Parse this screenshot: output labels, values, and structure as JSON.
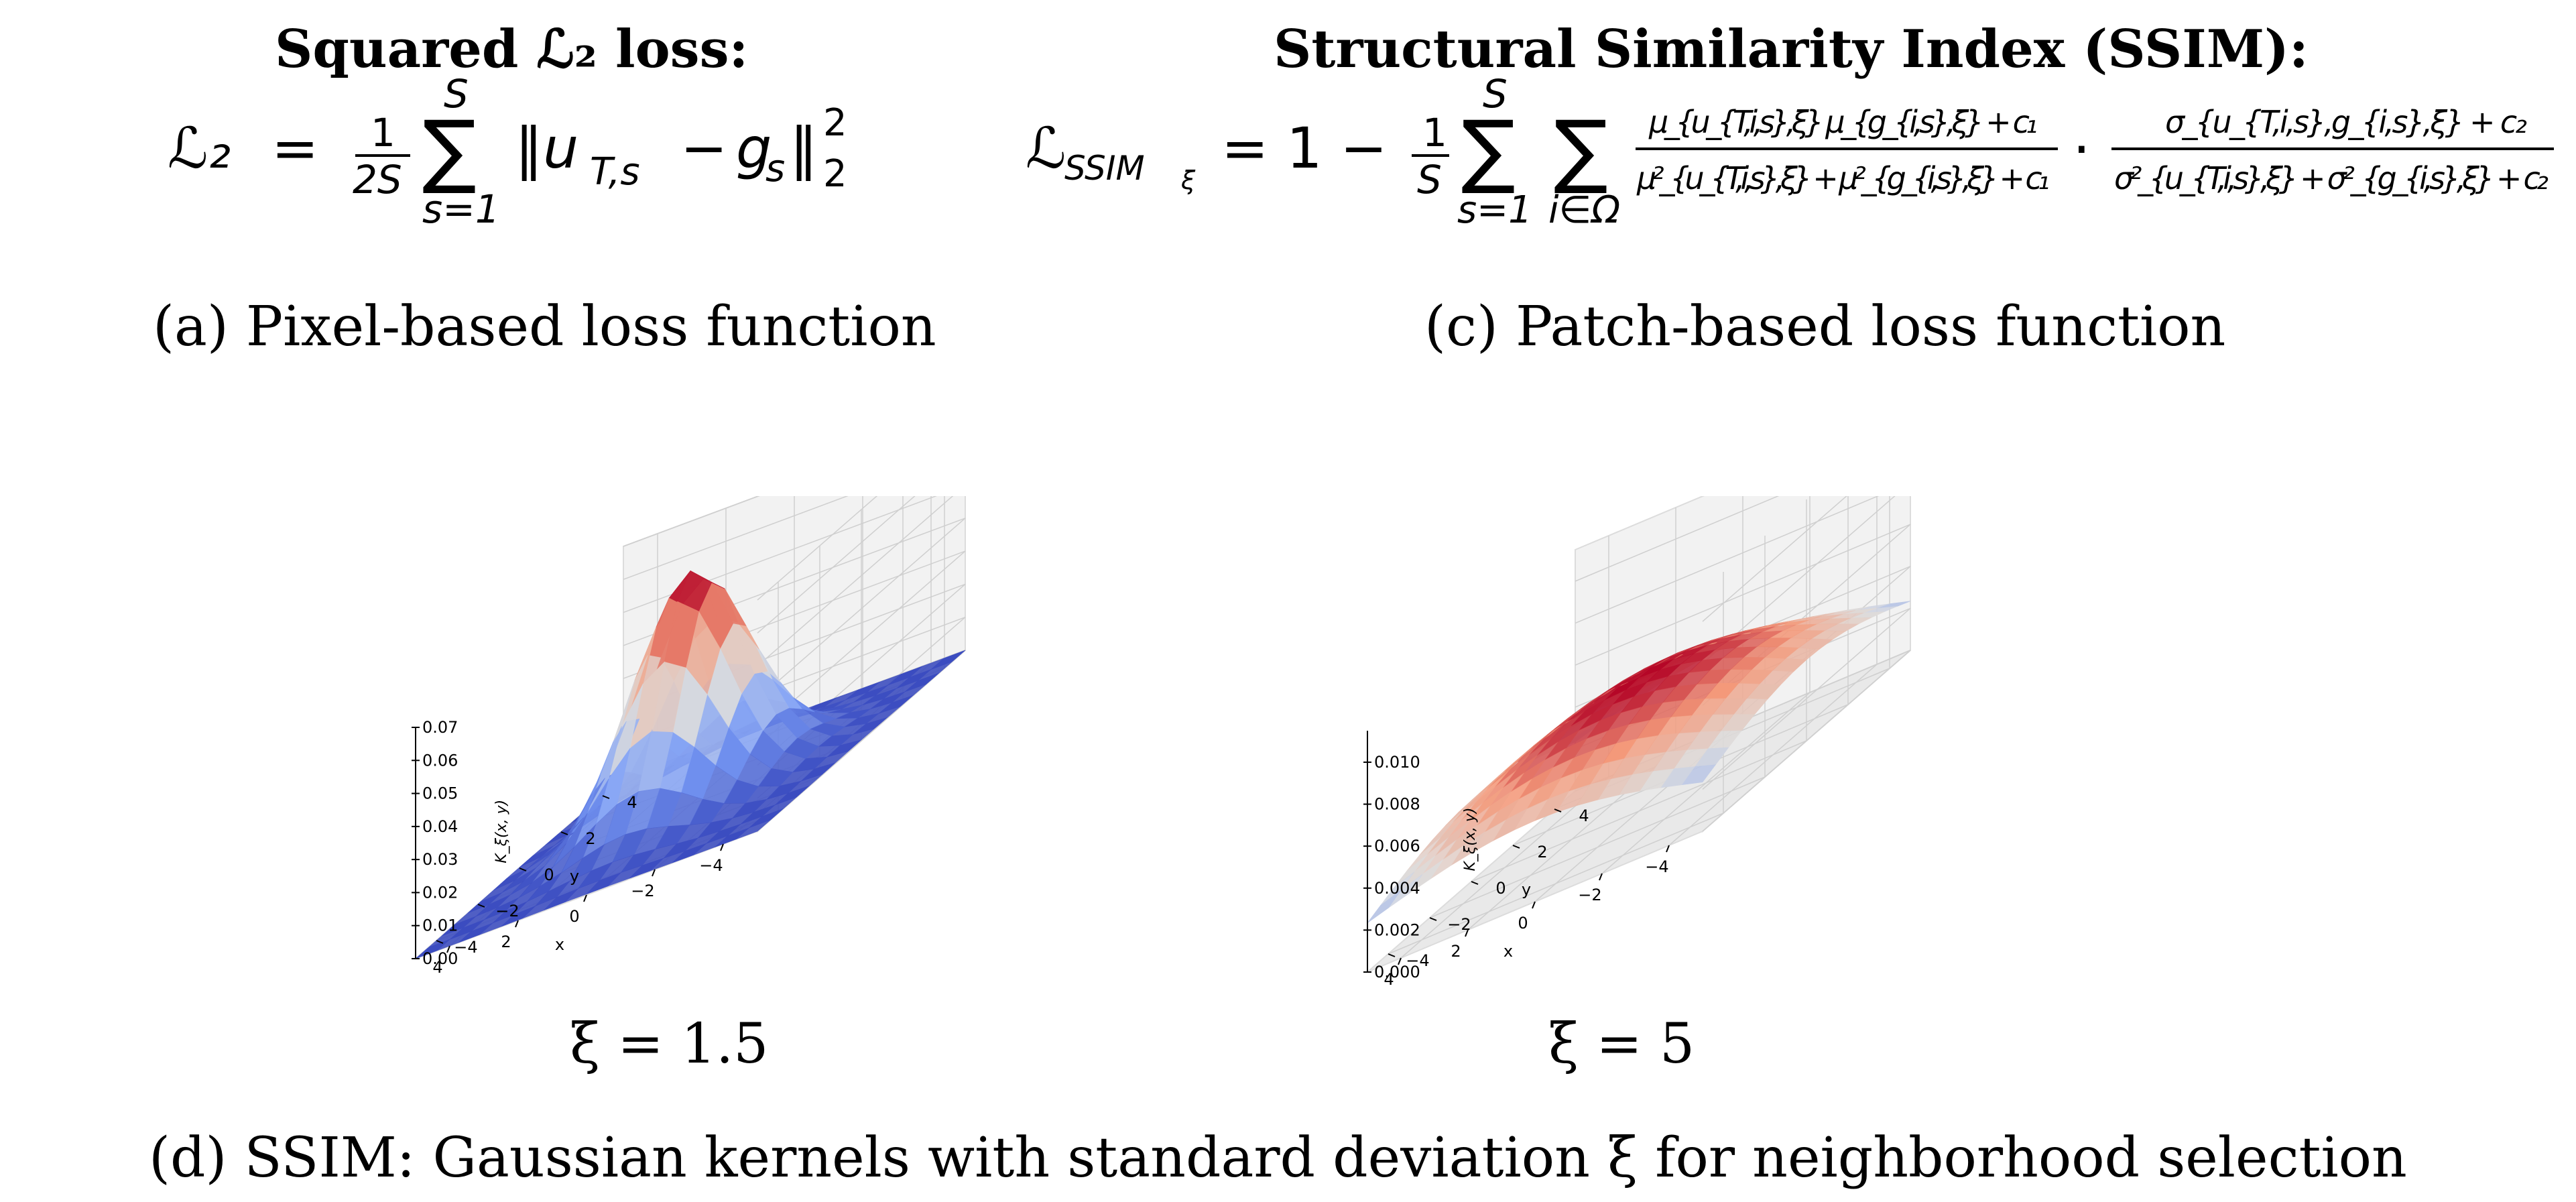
{
  "left_panel": {
    "title": "Squared ℒ₂ loss:",
    "formula": {
      "lhs": "ℒ₂",
      "equals": "=",
      "frac_num": "1",
      "frac_den": "2S",
      "sum_upper": "S",
      "sum_symbol": "∑",
      "sum_lower": "s=1",
      "body": "‖u",
      "body_sub": "T,s",
      "minus": "−",
      "g": "g",
      "g_sub": "s",
      "norm_close": "‖",
      "norm_sup": "2",
      "norm_sub": "2"
    },
    "caption": "(a) Pixel-based loss function"
  },
  "right_panel": {
    "title": "Structural Similarity Index (SSIM):",
    "formula": {
      "lhs": "ℒ",
      "lhs_sub": "SSIM",
      "lhs_subsub": "ξ",
      "equals_one_minus": "= 1 −",
      "frac_num": "1",
      "frac_den": "S",
      "sum_upper": "S",
      "sum_symbol": "∑",
      "sum_lower": "s=1",
      "sum2_symbol": "∑",
      "sum2_lower": "i∈Ω",
      "frac1_num": "μ_{u_{T,i,s},ξ} μ_{g_{i,s},ξ} + c₁",
      "frac1_den": "μ²_{u_{T,i,s},ξ} + μ²_{g_{i,s},ξ} + c₁",
      "dot": "·",
      "frac2_num": "σ_{u_{T,i,s},g_{i,s},ξ} + c₂",
      "frac2_den": "σ²_{u_{T,i,s},ξ} + σ²_{g_{i,s},ξ} + c₂"
    },
    "caption": "(c) Patch-based loss function"
  },
  "plots": [
    {
      "xi_label": "ξ = 1.5",
      "sigma": 1.5,
      "zlabel": "K_ξ(x, y)",
      "xlabel": "x",
      "ylabel": "y",
      "x_ticks": [
        "−4",
        "−2",
        "0",
        "2",
        "4"
      ],
      "y_ticks": [
        "−4",
        "−2",
        "0",
        "2",
        "4"
      ],
      "z_ticks": [
        "0.00",
        "0.01",
        "0.02",
        "0.03",
        "0.04",
        "0.05",
        "0.06",
        "0.07"
      ]
    },
    {
      "xi_label": "ξ = 5",
      "sigma": 5,
      "zlabel": "K_ξ(x, y)",
      "xlabel": "x",
      "ylabel": "y",
      "x_ticks": [
        "−4",
        "−2",
        "0",
        "2",
        "4"
      ],
      "y_ticks": [
        "−4",
        "−2",
        "0",
        "2",
        "4"
      ],
      "z_ticks": [
        "0.000",
        "0.002",
        "0.004",
        "0.006",
        "0.008",
        "0.010"
      ]
    }
  ],
  "bottom_caption": "(d) SSIM: Gaussian kernels with standard deviation ξ for neighborhood selection",
  "chart_data": [
    {
      "type": "surface",
      "title": "ξ = 1.5",
      "xlabel": "x",
      "ylabel": "y",
      "zlabel": "K_ξ(x, y)",
      "xlim": [
        -5,
        5
      ],
      "ylim": [
        -5,
        5
      ],
      "zlim": [
        0,
        0.07
      ],
      "function": "2D Gaussian kernel, standard deviation 1.5",
      "peak_value": 0.0707,
      "colormap": "coolwarm"
    },
    {
      "type": "surface",
      "title": "ξ = 5",
      "xlabel": "x",
      "ylabel": "y",
      "zlabel": "K_ξ(x, y)",
      "xlim": [
        -5,
        5
      ],
      "ylim": [
        -5,
        5
      ],
      "zlim": [
        0,
        0.0115
      ],
      "function": "2D Gaussian kernel, standard deviation 5",
      "peak_value": 0.0064,
      "colormap": "coolwarm"
    }
  ]
}
